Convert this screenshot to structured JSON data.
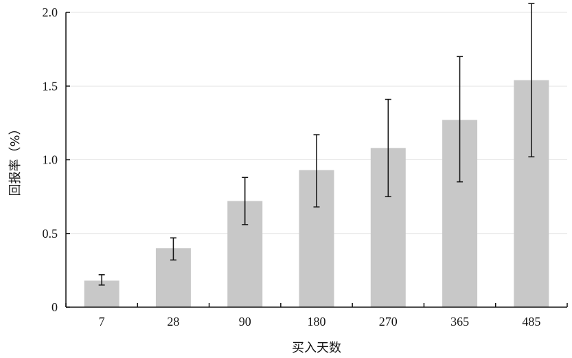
{
  "chart_data": {
    "type": "bar",
    "title": "",
    "xlabel": "买入天数",
    "ylabel": "回报率（%）",
    "categories": [
      "7",
      "28",
      "90",
      "180",
      "270",
      "365",
      "485"
    ],
    "values": [
      0.18,
      0.4,
      0.72,
      0.93,
      1.08,
      1.27,
      1.54
    ],
    "error_low": [
      0.15,
      0.32,
      0.56,
      0.68,
      0.75,
      0.85,
      1.02
    ],
    "error_high": [
      0.22,
      0.47,
      0.88,
      1.17,
      1.41,
      1.7,
      2.06
    ],
    "ylim": [
      0,
      2.0
    ],
    "yticks": [
      0,
      0.5,
      1.0,
      1.5,
      2.0
    ],
    "ytick_labels": [
      "0",
      "0.5",
      "1.0",
      "1.5",
      "2.0"
    ],
    "grid": "horizontal",
    "legend": "none",
    "colors": {
      "bar": "#c8c8c8",
      "error_bar": "#111111",
      "axis": "#111111",
      "grid": "#e3e3e3"
    }
  }
}
